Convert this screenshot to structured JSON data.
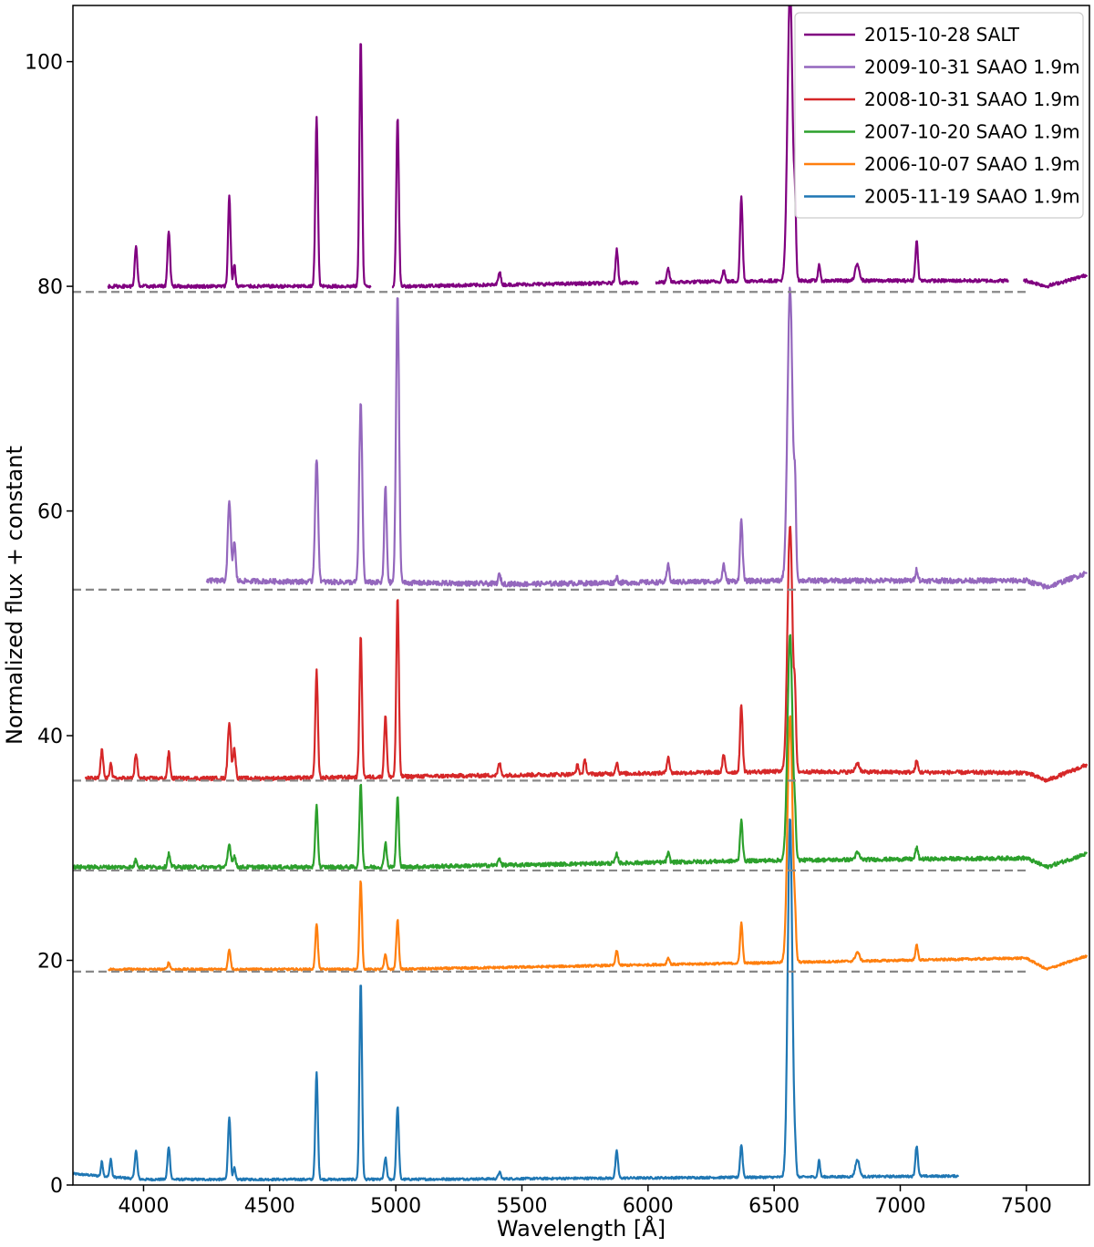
{
  "chart_data": {
    "type": "line",
    "xlabel": "Wavelength [Å]",
    "ylabel": "Normalized flux + constant",
    "xlim": [
      3720,
      7750
    ],
    "ylim": [
      0,
      105
    ],
    "xticks": [
      4000,
      4500,
      5000,
      5500,
      6000,
      6500,
      7000,
      7500
    ],
    "yticks": [
      0,
      20,
      40,
      60,
      80,
      100
    ],
    "grid": false,
    "legend_position": "top-right",
    "continuum_levels": [
      {
        "y": 79.5,
        "x_end": 7500,
        "color": "#888888"
      },
      {
        "y": 53.0,
        "x_end": 7500,
        "color": "#888888"
      },
      {
        "y": 36.0,
        "x_end": 7500,
        "color": "#888888"
      },
      {
        "y": 28.0,
        "x_end": 7500,
        "color": "#888888"
      },
      {
        "y": 19.0,
        "x_end": 7500,
        "color": "#888888"
      }
    ],
    "series": [
      {
        "name": "2015-10-28 SALT",
        "color": "#800080",
        "offset": 80,
        "x_range": [
          3860,
          7740
        ],
        "gaps": [
          [
            4900,
            4985
          ],
          [
            5960,
            6030
          ],
          [
            7430,
            7490
          ]
        ],
        "continuum_trend": [
          [
            3860,
            0.0
          ],
          [
            5000,
            0.0
          ],
          [
            6500,
            0.5
          ],
          [
            7500,
            0.5
          ],
          [
            7580,
            0.0
          ],
          [
            7740,
            1.0
          ]
        ],
        "noise": 0.3,
        "peaks": [
          [
            3970,
            3.5,
            5
          ],
          [
            4100,
            5,
            5
          ],
          [
            4340,
            8,
            5
          ],
          [
            4360,
            2,
            4
          ],
          [
            4686,
            15,
            5
          ],
          [
            4861,
            22,
            5
          ],
          [
            5007,
            15,
            5
          ],
          [
            5411,
            1.2,
            5
          ],
          [
            5876,
            3,
            5
          ],
          [
            6080,
            1.2,
            5
          ],
          [
            6300,
            1,
            5
          ],
          [
            6370,
            7.5,
            5
          ],
          [
            6563,
            26,
            10
          ],
          [
            6583,
            5,
            4
          ],
          [
            6678,
            1.5,
            4
          ],
          [
            6830,
            1.5,
            8
          ],
          [
            7065,
            3.5,
            5
          ]
        ]
      },
      {
        "name": "2009-10-31 SAAO 1.9m",
        "color": "#9467bd",
        "offset": 53.5,
        "x_range": [
          4250,
          7740
        ],
        "gaps": [],
        "continuum_trend": [
          [
            4250,
            0.3
          ],
          [
            5500,
            0.0
          ],
          [
            6500,
            0.3
          ],
          [
            7500,
            0.3
          ],
          [
            7580,
            -0.3
          ],
          [
            7740,
            1.0
          ]
        ],
        "noise": 0.45,
        "peaks": [
          [
            4340,
            7,
            6
          ],
          [
            4360,
            3.5,
            5
          ],
          [
            4686,
            11,
            6
          ],
          [
            4861,
            16,
            6
          ],
          [
            4959,
            8.5,
            5
          ],
          [
            5007,
            25.5,
            6
          ],
          [
            5411,
            0.8,
            5
          ],
          [
            5876,
            0.5,
            5
          ],
          [
            6080,
            1.5,
            5
          ],
          [
            6300,
            1.5,
            5
          ],
          [
            6370,
            5.5,
            5
          ],
          [
            6563,
            26,
            10
          ],
          [
            6583,
            6.5,
            4
          ],
          [
            7065,
            1,
            5
          ]
        ]
      },
      {
        "name": "2008-10-31 SAAO 1.9m",
        "color": "#d62728",
        "offset": 36.2,
        "x_range": [
          3770,
          7740
        ],
        "gaps": [],
        "continuum_trend": [
          [
            3770,
            0.0
          ],
          [
            4500,
            0.0
          ],
          [
            6500,
            0.6
          ],
          [
            7500,
            0.5
          ],
          [
            7580,
            -0.2
          ],
          [
            7740,
            1.2
          ]
        ],
        "noise": 0.35,
        "peaks": [
          [
            3835,
            2.5,
            5
          ],
          [
            3870,
            1.5,
            4
          ],
          [
            3970,
            2.2,
            5
          ],
          [
            4100,
            2.3,
            5
          ],
          [
            4340,
            5,
            6
          ],
          [
            4360,
            2.7,
            5
          ],
          [
            4686,
            9.5,
            5
          ],
          [
            4861,
            12.5,
            5
          ],
          [
            4959,
            5.5,
            5
          ],
          [
            5007,
            16,
            5
          ],
          [
            5411,
            1.1,
            5
          ],
          [
            5720,
            0.8,
            5
          ],
          [
            5750,
            1.2,
            5
          ],
          [
            5876,
            1,
            5
          ],
          [
            6080,
            1.5,
            5
          ],
          [
            6300,
            1.5,
            5
          ],
          [
            6370,
            6,
            5
          ],
          [
            6563,
            22,
            10
          ],
          [
            6583,
            5,
            4
          ],
          [
            6830,
            0.8,
            8
          ],
          [
            7065,
            1,
            5
          ]
        ]
      },
      {
        "name": "2007-10-20 SAAO 1.9m",
        "color": "#2ca02c",
        "offset": 28.3,
        "x_range": [
          3720,
          7740
        ],
        "gaps": [],
        "continuum_trend": [
          [
            3720,
            0.0
          ],
          [
            5000,
            0.0
          ],
          [
            6500,
            0.6
          ],
          [
            7500,
            0.8
          ],
          [
            7580,
            0.0
          ],
          [
            7740,
            1.2
          ]
        ],
        "noise": 0.35,
        "peaks": [
          [
            3970,
            0.7,
            5
          ],
          [
            4100,
            1.2,
            5
          ],
          [
            4340,
            2,
            6
          ],
          [
            4360,
            1,
            5
          ],
          [
            4686,
            5.5,
            5
          ],
          [
            4861,
            7.3,
            5
          ],
          [
            4959,
            2.2,
            5
          ],
          [
            5007,
            6.2,
            5
          ],
          [
            5411,
            0.6,
            5
          ],
          [
            5876,
            0.8,
            5
          ],
          [
            6080,
            0.8,
            5
          ],
          [
            6370,
            3.7,
            5
          ],
          [
            6563,
            20,
            10
          ],
          [
            6583,
            2.5,
            4
          ],
          [
            6830,
            0.6,
            8
          ],
          [
            7065,
            1,
            5
          ]
        ]
      },
      {
        "name": "2006-10-07 SAAO 1.9m",
        "color": "#ff7f0e",
        "offset": 19.2,
        "x_range": [
          3860,
          7740
        ],
        "gaps": [],
        "continuum_trend": [
          [
            3860,
            0.0
          ],
          [
            5000,
            0.0
          ],
          [
            6500,
            0.6
          ],
          [
            7500,
            1.0
          ],
          [
            7580,
            0.0
          ],
          [
            7740,
            1.2
          ]
        ],
        "noise": 0.2,
        "peaks": [
          [
            4100,
            0.6,
            5
          ],
          [
            4340,
            1.8,
            5
          ],
          [
            4686,
            4.1,
            5
          ],
          [
            4861,
            7.9,
            5
          ],
          [
            4959,
            1.3,
            5
          ],
          [
            5007,
            4.4,
            5
          ],
          [
            5876,
            1.3,
            5
          ],
          [
            6080,
            0.6,
            5
          ],
          [
            6370,
            3.6,
            5
          ],
          [
            6563,
            22,
            10
          ],
          [
            6583,
            2.5,
            4
          ],
          [
            6830,
            0.8,
            8
          ],
          [
            7065,
            1.3,
            5
          ]
        ]
      },
      {
        "name": "2005-11-19 SAAO 1.9m",
        "color": "#1f77b4",
        "offset": 0.5,
        "x_range": [
          3720,
          7230
        ],
        "gaps": [],
        "continuum_trend": [
          [
            3720,
            0.5
          ],
          [
            4000,
            0.0
          ],
          [
            5000,
            0.0
          ],
          [
            6500,
            0.2
          ],
          [
            7230,
            0.3
          ]
        ],
        "noise": 0.2,
        "peaks": [
          [
            3835,
            1.3,
            4
          ],
          [
            3870,
            1.6,
            4
          ],
          [
            3970,
            2.5,
            5
          ],
          [
            4100,
            2.9,
            5
          ],
          [
            4340,
            5.6,
            5
          ],
          [
            4360,
            1,
            4
          ],
          [
            4686,
            9.5,
            5
          ],
          [
            4861,
            17.6,
            5
          ],
          [
            4959,
            1.9,
            5
          ],
          [
            5007,
            6.5,
            5
          ],
          [
            5411,
            0.6,
            5
          ],
          [
            5876,
            2.4,
            5
          ],
          [
            6370,
            2.9,
            5
          ],
          [
            6563,
            32,
            9
          ],
          [
            6583,
            1.5,
            4
          ],
          [
            6678,
            1.5,
            4
          ],
          [
            6830,
            1.5,
            8
          ],
          [
            7065,
            2.7,
            5
          ]
        ]
      }
    ]
  }
}
